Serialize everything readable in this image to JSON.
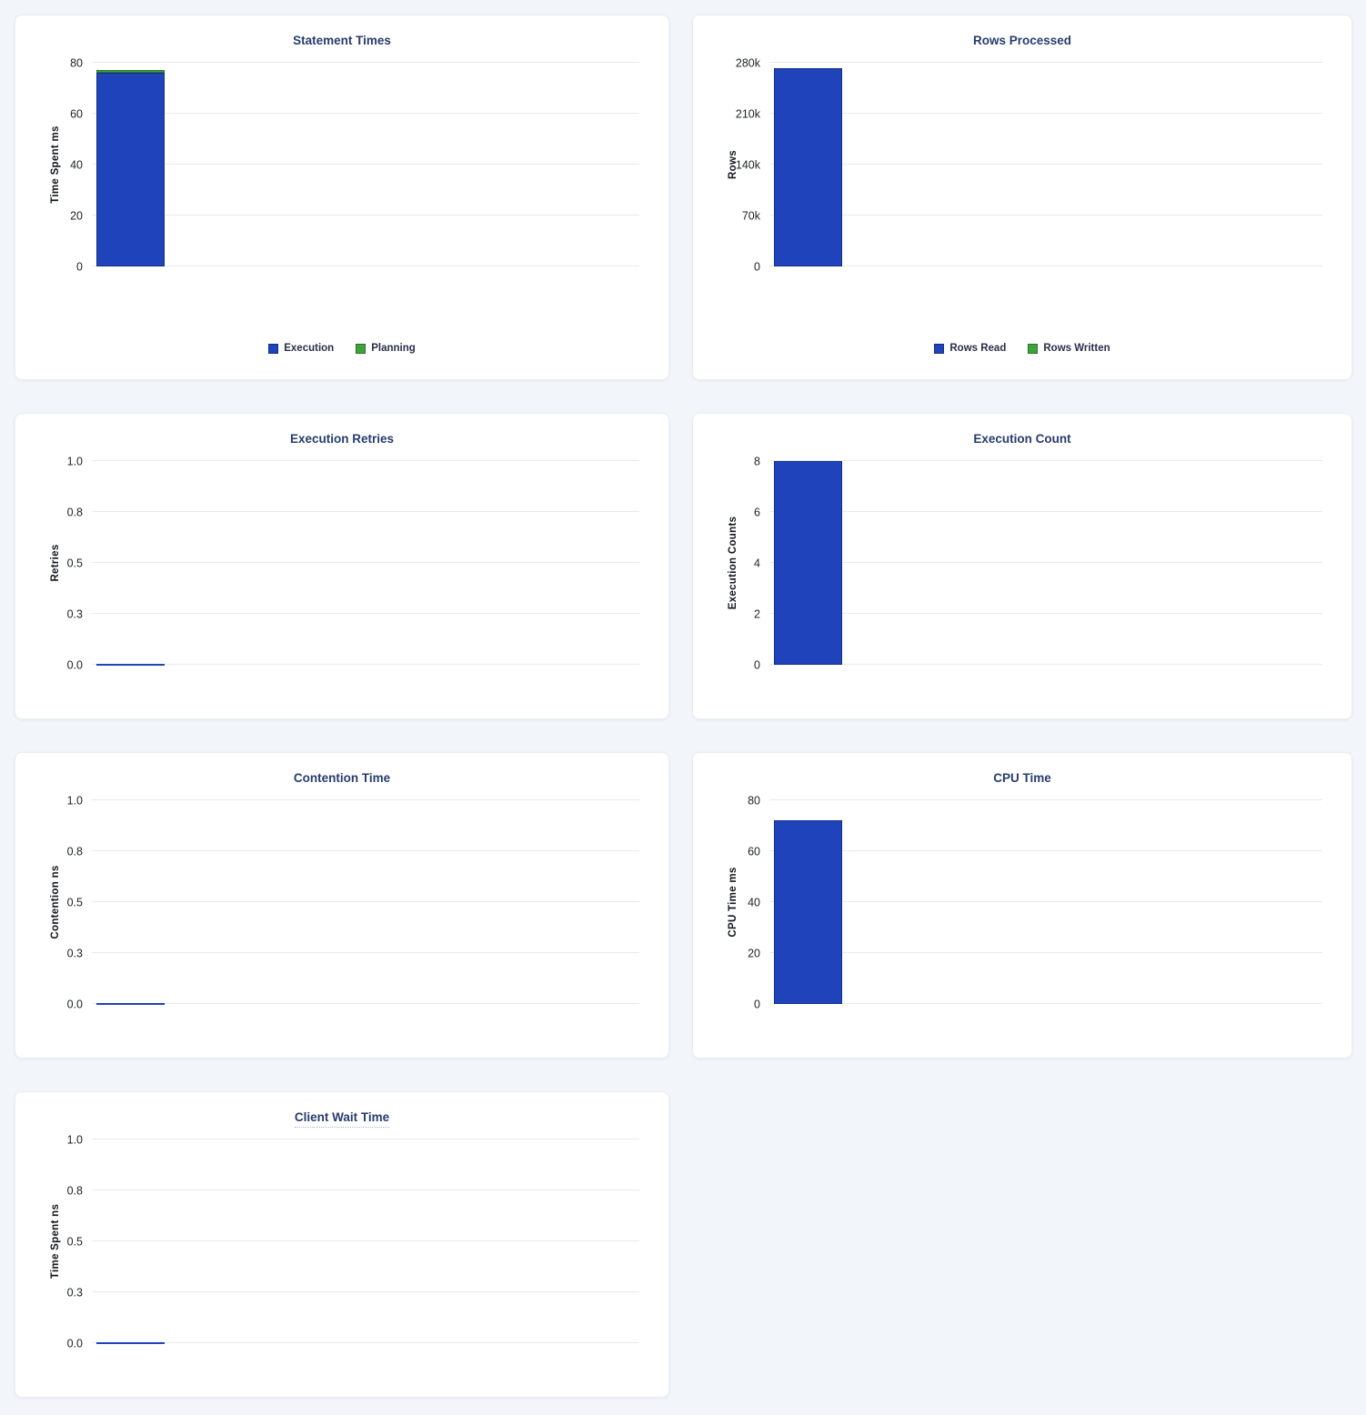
{
  "chart_data": [
    {
      "id": "statement-times",
      "type": "bar",
      "title": "Statement Times",
      "ylabel": "Time Spent ms",
      "ylim": [
        0,
        80
      ],
      "stacked": true,
      "grid": true,
      "legend_position": "bottom",
      "yticks": [
        {
          "label": "0",
          "value": 0
        },
        {
          "label": "20",
          "value": 20
        },
        {
          "label": "40",
          "value": 40
        },
        {
          "label": "60",
          "value": 60
        },
        {
          "label": "80",
          "value": 80
        }
      ],
      "series": [
        {
          "name": "Execution",
          "value": 76,
          "color": "#1e43bb"
        },
        {
          "name": "Planning",
          "value": 1.2,
          "color": "#3da33a"
        }
      ]
    },
    {
      "id": "rows-processed",
      "type": "bar",
      "title": "Rows Processed",
      "ylabel": "Rows",
      "ylim": [
        0,
        280000
      ],
      "stacked": true,
      "grid": true,
      "legend_position": "bottom",
      "yticks": [
        {
          "label": "0",
          "value": 0
        },
        {
          "label": "70k",
          "value": 70000
        },
        {
          "label": "140k",
          "value": 140000
        },
        {
          "label": "210k",
          "value": 210000
        },
        {
          "label": "280k",
          "value": 280000
        }
      ],
      "series": [
        {
          "name": "Rows Read",
          "value": 272000,
          "color": "#1e43bb"
        },
        {
          "name": "Rows Written",
          "value": 0,
          "color": "#3da33a"
        }
      ]
    },
    {
      "id": "execution-retries",
      "type": "bar",
      "title": "Execution Retries",
      "ylabel": "Retries",
      "ylim": [
        0,
        1
      ],
      "grid": true,
      "yticks": [
        {
          "label": "0.0",
          "value": 0
        },
        {
          "label": "0.3",
          "value": 0.25
        },
        {
          "label": "0.5",
          "value": 0.5
        },
        {
          "label": "0.8",
          "value": 0.75
        },
        {
          "label": "1.0",
          "value": 1
        }
      ],
      "series": [
        {
          "value": 0,
          "color": "#1e43bb"
        }
      ]
    },
    {
      "id": "execution-count",
      "type": "bar",
      "title": "Execution Count",
      "ylabel": "Execution Counts",
      "ylim": [
        0,
        8
      ],
      "grid": true,
      "yticks": [
        {
          "label": "0",
          "value": 0
        },
        {
          "label": "2",
          "value": 2
        },
        {
          "label": "4",
          "value": 4
        },
        {
          "label": "6",
          "value": 6
        },
        {
          "label": "8",
          "value": 8
        }
      ],
      "series": [
        {
          "value": 8,
          "color": "#1e43bb"
        }
      ]
    },
    {
      "id": "contention-time",
      "type": "bar",
      "title": "Contention Time",
      "ylabel": "Contention ns",
      "ylim": [
        0,
        1
      ],
      "grid": true,
      "yticks": [
        {
          "label": "0.0",
          "value": 0
        },
        {
          "label": "0.3",
          "value": 0.25
        },
        {
          "label": "0.5",
          "value": 0.5
        },
        {
          "label": "0.8",
          "value": 0.75
        },
        {
          "label": "1.0",
          "value": 1
        }
      ],
      "series": [
        {
          "value": 0,
          "color": "#1e43bb"
        }
      ]
    },
    {
      "id": "cpu-time",
      "type": "bar",
      "title": "CPU Time",
      "ylabel": "CPU Time ms",
      "ylim": [
        0,
        80
      ],
      "grid": true,
      "yticks": [
        {
          "label": "0",
          "value": 0
        },
        {
          "label": "20",
          "value": 20
        },
        {
          "label": "40",
          "value": 40
        },
        {
          "label": "60",
          "value": 60
        },
        {
          "label": "80",
          "value": 80
        }
      ],
      "series": [
        {
          "value": 72,
          "color": "#1e43bb"
        }
      ]
    },
    {
      "id": "client-wait-time",
      "type": "bar",
      "title": "Client Wait Time",
      "ylabel": "Time Spent ns",
      "ylim": [
        0,
        1
      ],
      "grid": true,
      "title_has_tooltip": true,
      "yticks": [
        {
          "label": "0.0",
          "value": 0
        },
        {
          "label": "0.3",
          "value": 0.25
        },
        {
          "label": "0.5",
          "value": 0.5
        },
        {
          "label": "0.8",
          "value": 0.75
        },
        {
          "label": "1.0",
          "value": 1
        }
      ],
      "series": [
        {
          "value": 0,
          "color": "#1e43bb"
        }
      ]
    }
  ]
}
